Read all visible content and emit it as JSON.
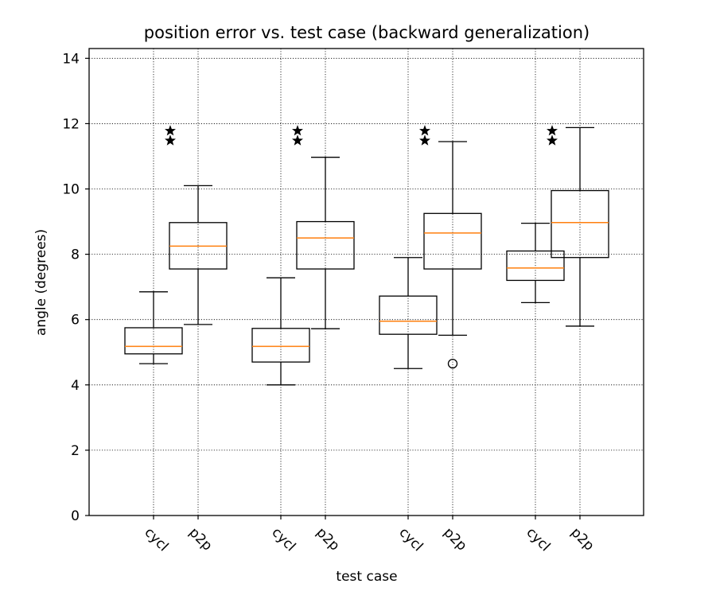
{
  "chart_data": {
    "type": "box",
    "title": "position error vs. test case (backward generalization)",
    "xlabel": "test case",
    "ylabel": "angle (degrees)",
    "ylim": [
      0,
      14.3
    ],
    "yticks": [
      0,
      2,
      4,
      6,
      8,
      10,
      12,
      14
    ],
    "grid": true,
    "categories": [
      "cycl",
      "p2p",
      "cycl",
      "p2p",
      "cycl",
      "p2p",
      "cycl",
      "p2p"
    ],
    "boxes": [
      {
        "label": "cycl",
        "whisker_low": 4.65,
        "q1": 4.95,
        "median": 5.18,
        "q3": 5.75,
        "whisker_high": 6.85,
        "outliers": []
      },
      {
        "label": "p2p",
        "whisker_low": 5.85,
        "q1": 7.55,
        "median": 8.25,
        "q3": 8.97,
        "whisker_high": 10.1,
        "outliers": []
      },
      {
        "label": "cycl",
        "whisker_low": 4.0,
        "q1": 4.7,
        "median": 5.18,
        "q3": 5.73,
        "whisker_high": 7.28,
        "outliers": []
      },
      {
        "label": "p2p",
        "whisker_low": 5.72,
        "q1": 7.55,
        "median": 8.5,
        "q3": 9.0,
        "whisker_high": 10.97,
        "outliers": []
      },
      {
        "label": "cycl",
        "whisker_low": 4.5,
        "q1": 5.55,
        "median": 5.95,
        "q3": 6.72,
        "whisker_high": 7.9,
        "outliers": []
      },
      {
        "label": "p2p",
        "whisker_low": 5.52,
        "q1": 7.55,
        "median": 8.65,
        "q3": 9.25,
        "whisker_high": 11.45,
        "outliers": [
          4.65
        ]
      },
      {
        "label": "cycl",
        "whisker_low": 6.52,
        "q1": 7.2,
        "median": 7.58,
        "q3": 8.1,
        "whisker_high": 8.95,
        "outliers": []
      },
      {
        "label": "p2p",
        "whisker_low": 5.8,
        "q1": 7.9,
        "median": 8.97,
        "q3": 9.95,
        "whisker_high": 11.88,
        "outliers": []
      }
    ],
    "significance_markers": [
      {
        "group": 1,
        "symbol": "★★",
        "y": [
          11.48,
          11.78
        ]
      },
      {
        "group": 2,
        "symbol": "★★",
        "y": [
          11.48,
          11.78
        ]
      },
      {
        "group": 3,
        "symbol": "★★",
        "y": [
          11.48,
          11.78
        ]
      },
      {
        "group": 4,
        "symbol": "★★",
        "y": [
          11.48,
          11.78
        ]
      }
    ],
    "colors": {
      "median": "#ff7f0e",
      "box": "#000000",
      "grid": "#000000"
    }
  }
}
